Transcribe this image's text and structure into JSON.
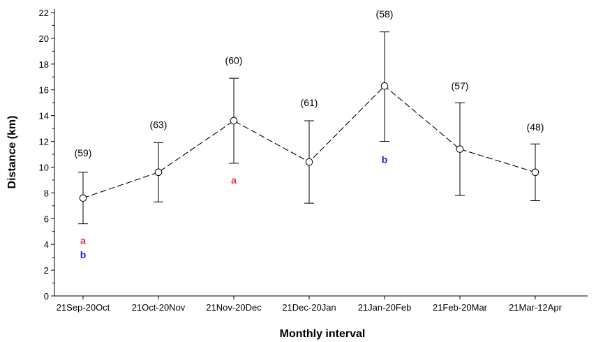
{
  "chart_data": {
    "type": "line",
    "xlabel": "Monthly interval",
    "ylabel": "Distance (km)",
    "ylim": [
      0,
      22
    ],
    "yticks": [
      0,
      2,
      4,
      6,
      8,
      10,
      12,
      14,
      16,
      18,
      20,
      22
    ],
    "grid": false,
    "categories": [
      "21Sep-20Oct",
      "21Oct-20Nov",
      "21Nov-20Dec",
      "21Dec-20Jan",
      "21Jan-20Feb",
      "21Feb-20Mar",
      "21Mar-12Apr"
    ],
    "series": [
      {
        "values": [
          7.6,
          9.6,
          13.6,
          10.4,
          16.3,
          11.4,
          9.6
        ],
        "error_low": [
          5.6,
          7.3,
          10.3,
          7.2,
          12.0,
          7.8,
          7.4
        ],
        "error_high": [
          9.6,
          11.9,
          16.9,
          13.6,
          20.5,
          15.0,
          11.8
        ],
        "line_style": "dashed",
        "marker": "open-circle"
      }
    ],
    "annotations": [
      {
        "category": "21Sep-20Oct",
        "text": "(59)",
        "y": 11.1
      },
      {
        "category": "21Oct-20Nov",
        "text": "(63)",
        "y": 13.3
      },
      {
        "category": "21Nov-20Dec",
        "text": "(60)",
        "y": 18.3
      },
      {
        "category": "21Dec-20Jan",
        "text": "(61)",
        "y": 15.0
      },
      {
        "category": "21Jan-20Feb",
        "text": "(58)",
        "y": 21.9
      },
      {
        "category": "21Feb-20Mar",
        "text": "(57)",
        "y": 16.3
      },
      {
        "category": "21Mar-12Apr",
        "text": "(48)",
        "y": 13.1
      }
    ],
    "significance_labels": [
      {
        "category": "21Sep-20Oct",
        "text": "a",
        "color": "#e8332e",
        "y": 4.3
      },
      {
        "category": "21Sep-20Oct",
        "text": "b",
        "color": "#1f1fd6",
        "y": 3.2
      },
      {
        "category": "21Nov-20Dec",
        "text": "a",
        "color": "#e8332e",
        "y": 9.0
      },
      {
        "category": "21Jan-20Feb",
        "text": "b",
        "color": "#1f1fd6",
        "y": 10.6
      }
    ]
  }
}
